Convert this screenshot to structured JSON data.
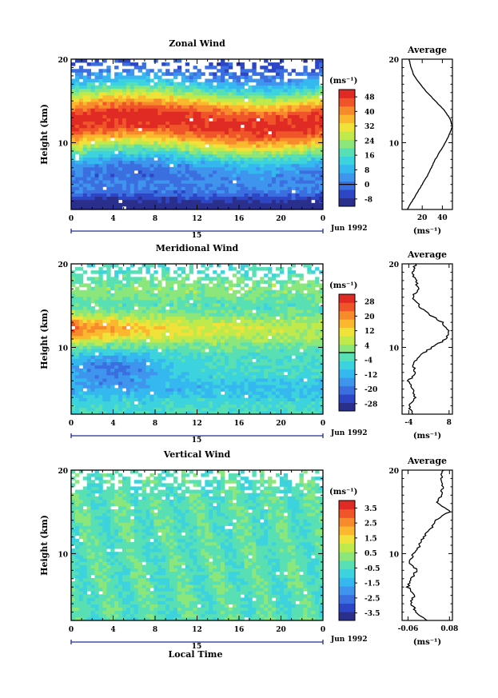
{
  "chart_data": [
    {
      "type": "heatmap",
      "title": "Zonal Wind",
      "ylabel": "Height (km)",
      "xlabel": "",
      "x_ticks": [
        "0",
        "4",
        "8",
        "12",
        "16",
        "20",
        "0"
      ],
      "y_ticks": [
        "20",
        "10"
      ],
      "ylim": [
        2,
        20
      ],
      "day_label": "15",
      "date_label": "Jun 1992",
      "colorbar": {
        "unit": "(ms⁻¹)",
        "range": [
          -12,
          52
        ],
        "zero_line": 0,
        "tick_labels": [
          "48",
          "40",
          "32",
          "24",
          "16",
          "8",
          "0",
          "-8"
        ]
      },
      "field_peak_heights_km": [
        12,
        13
      ],
      "average_profile": {
        "title": "Average",
        "xlabel": "(ms⁻¹)",
        "x_ticks": [
          "20",
          "40"
        ],
        "xlim": [
          0,
          50
        ],
        "y_ticks": [
          "20",
          "10"
        ],
        "heights_km": [
          2,
          3,
          4,
          5,
          6,
          7,
          8,
          9,
          10,
          11,
          12,
          13,
          14,
          15,
          16,
          17,
          18,
          19,
          20
        ],
        "values": [
          5,
          10,
          15,
          20,
          25,
          29,
          33,
          38,
          43,
          47,
          50,
          47,
          41,
          33,
          25,
          18,
          12,
          9,
          7
        ]
      }
    },
    {
      "type": "heatmap",
      "title": "Meridional Wind",
      "ylabel": "Height (km)",
      "xlabel": "",
      "x_ticks": [
        "0",
        "4",
        "8",
        "12",
        "16",
        "20",
        "0"
      ],
      "y_ticks": [
        "20",
        "10"
      ],
      "ylim": [
        2,
        20
      ],
      "day_label": "15",
      "date_label": "Jun 1992",
      "colorbar": {
        "unit": "(ms⁻¹)",
        "range": [
          -30,
          30
        ],
        "zero_line": 0,
        "tick_labels": [
          "28",
          "20",
          "12",
          "4",
          "-4",
          "-12",
          "-20",
          "-28"
        ]
      },
      "average_profile": {
        "title": "Average",
        "xlabel": "(ms⁻¹)",
        "x_ticks": [
          "-4",
          "8"
        ],
        "xlim": [
          -6,
          9
        ],
        "y_ticks": [
          "20",
          "10"
        ],
        "heights_km": [
          2,
          3,
          4,
          5,
          6,
          7,
          8,
          9,
          10,
          11,
          12,
          13,
          14,
          15,
          16,
          17,
          18,
          19,
          20
        ],
        "values": [
          -3,
          -4,
          -2,
          -3,
          -4,
          -2,
          -3,
          -1,
          3,
          7,
          8,
          6,
          2,
          -1,
          -3,
          -1,
          -2,
          -3,
          -2
        ]
      }
    },
    {
      "type": "heatmap",
      "title": "Vertical Wind",
      "ylabel": "Height (km)",
      "xlabel": "Local Time",
      "x_ticks": [
        "0",
        "4",
        "8",
        "12",
        "16",
        "20",
        "0"
      ],
      "y_ticks": [
        "20",
        "10"
      ],
      "ylim": [
        2,
        20
      ],
      "day_label": "15",
      "date_label": "Jun 1992",
      "colorbar": {
        "unit": "(ms⁻¹)",
        "range": [
          -4,
          4
        ],
        "zero_line": null,
        "tick_labels": [
          "3.5",
          "2.5",
          "1.5",
          "0.5",
          "-0.5",
          "-1.5",
          "-2.5",
          "-3.5"
        ]
      },
      "average_profile": {
        "title": "Average",
        "xlabel": "(ms⁻¹)",
        "x_ticks": [
          "-0.06",
          "0.08"
        ],
        "xlim": [
          -0.08,
          0.09
        ],
        "y_ticks": [
          "20",
          "10"
        ],
        "heights_km": [
          2,
          3,
          4,
          5,
          6,
          7,
          8,
          9,
          10,
          11,
          12,
          13,
          14,
          15,
          16,
          17,
          18,
          19,
          20
        ],
        "values": [
          0.0,
          -0.03,
          -0.05,
          -0.04,
          -0.06,
          -0.05,
          -0.03,
          -0.06,
          -0.04,
          -0.02,
          -0.01,
          0.02,
          0.03,
          0.08,
          0.04,
          0.05,
          0.06,
          0.05,
          0.06
        ]
      }
    }
  ]
}
